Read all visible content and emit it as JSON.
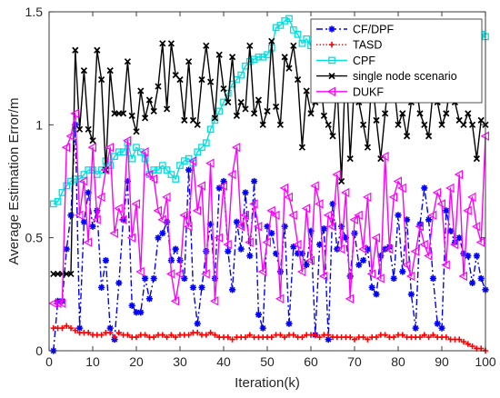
{
  "chart_data": {
    "type": "line",
    "title": "",
    "xlabel": "Iteration(k)",
    "ylabel": "Average Estimation Error/m",
    "xlim": [
      0,
      100
    ],
    "ylim": [
      0,
      1.5
    ],
    "xticks": [
      0,
      10,
      20,
      30,
      40,
      50,
      60,
      70,
      80,
      90,
      100
    ],
    "yticks": [
      0,
      0.5,
      1,
      1.5
    ],
    "ytick_labels": [
      "0",
      "0.5",
      "1",
      "1.5"
    ],
    "grid": false,
    "legend_position": "top-right",
    "series": [
      {
        "name": "CF/DPF",
        "color": "#0000FF",
        "line": "dashdot",
        "marker": "asterisk",
        "x": [
          1,
          2,
          3,
          4,
          5,
          6,
          7,
          8,
          9,
          10,
          11,
          12,
          13,
          14,
          15,
          16,
          17,
          18,
          19,
          20,
          21,
          22,
          23,
          24,
          25,
          26,
          27,
          28,
          29,
          30,
          31,
          32,
          33,
          34,
          35,
          36,
          37,
          38,
          39,
          40,
          41,
          42,
          43,
          44,
          45,
          46,
          47,
          48,
          49,
          50,
          51,
          52,
          53,
          54,
          55,
          56,
          57,
          58,
          59,
          60,
          61,
          62,
          63,
          64,
          65,
          66,
          67,
          68,
          69,
          70,
          71,
          72,
          73,
          74,
          75,
          76,
          77,
          78,
          79,
          80,
          81,
          82,
          83,
          84,
          85,
          86,
          87,
          88,
          89,
          90,
          91,
          92,
          93,
          94,
          95,
          96,
          97,
          98,
          99,
          100
        ],
        "y": [
          0.0,
          0.22,
          0.22,
          0.45,
          0.6,
          1.0,
          0.1,
          0.57,
          0.7,
          0.55,
          0.62,
          0.28,
          0.4,
          0.1,
          0.05,
          0.3,
          0.58,
          0.75,
          0.2,
          0.17,
          0.17,
          0.32,
          0.23,
          0.32,
          0.5,
          0.52,
          0.57,
          0.4,
          0.45,
          0.4,
          0.32,
          0.8,
          0.28,
          0.12,
          0.28,
          0.44,
          0.56,
          0.32,
          0.72,
          0.75,
          0.44,
          0.27,
          0.57,
          0.45,
          0.7,
          0.42,
          0.75,
          0.16,
          0.1,
          0.55,
          0.52,
          0.43,
          0.35,
          0.55,
          0.12,
          0.46,
          0.43,
          0.43,
          0.38,
          0.53,
          0.07,
          0.47,
          0.54,
          0.05,
          0.65,
          0.45,
          0.55,
          0.5,
          0.33,
          0.52,
          0.38,
          0.4,
          0.45,
          0.28,
          0.25,
          0.42,
          0.45,
          0.46,
          0.32,
          0.6,
          0.35,
          0.58,
          0.25,
          0.1,
          0.56,
          0.72,
          0.58,
          0.32,
          0.12,
          0.1,
          0.62,
          0.53,
          0.48,
          0.5,
          0.43,
          0.42,
          0.3,
          0.42,
          0.32,
          0.27
        ]
      },
      {
        "name": "TASD",
        "color": "#FF0000",
        "line": "dotted",
        "marker": "plus",
        "x": [
          1,
          2,
          3,
          4,
          5,
          6,
          7,
          8,
          9,
          10,
          11,
          12,
          13,
          14,
          15,
          16,
          17,
          18,
          19,
          20,
          21,
          22,
          23,
          24,
          25,
          26,
          27,
          28,
          29,
          30,
          31,
          32,
          33,
          34,
          35,
          36,
          37,
          38,
          39,
          40,
          41,
          42,
          43,
          44,
          45,
          46,
          47,
          48,
          49,
          50,
          51,
          52,
          53,
          54,
          55,
          56,
          57,
          58,
          59,
          60,
          61,
          62,
          63,
          64,
          65,
          66,
          67,
          68,
          69,
          70,
          71,
          72,
          73,
          74,
          75,
          76,
          77,
          78,
          79,
          80,
          81,
          82,
          83,
          84,
          85,
          86,
          87,
          88,
          89,
          90,
          91,
          92,
          93,
          94,
          95,
          96,
          97,
          98,
          99,
          100
        ],
        "y": [
          0.1,
          0.1,
          0.1,
          0.11,
          0.1,
          0.09,
          0.08,
          0.08,
          0.08,
          0.07,
          0.07,
          0.07,
          0.08,
          0.08,
          0.06,
          0.08,
          0.07,
          0.07,
          0.06,
          0.06,
          0.07,
          0.07,
          0.06,
          0.06,
          0.07,
          0.07,
          0.06,
          0.07,
          0.06,
          0.07,
          0.07,
          0.07,
          0.08,
          0.08,
          0.07,
          0.07,
          0.08,
          0.07,
          0.06,
          0.06,
          0.06,
          0.05,
          0.06,
          0.06,
          0.06,
          0.07,
          0.06,
          0.06,
          0.06,
          0.06,
          0.06,
          0.07,
          0.07,
          0.06,
          0.07,
          0.07,
          0.06,
          0.06,
          0.07,
          0.07,
          0.07,
          0.06,
          0.07,
          0.07,
          0.06,
          0.06,
          0.06,
          0.06,
          0.06,
          0.05,
          0.06,
          0.06,
          0.05,
          0.06,
          0.06,
          0.07,
          0.07,
          0.06,
          0.06,
          0.07,
          0.07,
          0.06,
          0.06,
          0.06,
          0.06,
          0.07,
          0.06,
          0.07,
          0.06,
          0.06,
          0.06,
          0.05,
          0.05,
          0.05,
          0.04,
          0.03,
          0.02,
          0.01,
          0.01,
          0.0
        ]
      },
      {
        "name": "CPF",
        "color": "#00E0E0",
        "line": "solid",
        "marker": "square",
        "x": [
          1,
          2,
          3,
          4,
          5,
          6,
          7,
          8,
          9,
          10,
          11,
          12,
          13,
          14,
          15,
          16,
          17,
          18,
          19,
          20,
          21,
          22,
          23,
          24,
          25,
          26,
          27,
          28,
          29,
          30,
          31,
          32,
          33,
          34,
          35,
          36,
          37,
          38,
          39,
          40,
          41,
          42,
          43,
          44,
          45,
          46,
          47,
          48,
          49,
          50,
          51,
          52,
          53,
          54,
          55,
          56,
          57,
          58,
          59,
          60,
          61,
          62,
          63,
          64,
          65,
          66,
          67,
          68,
          69,
          70,
          71,
          72,
          73,
          74,
          75,
          76,
          77,
          78,
          79,
          80,
          81,
          82,
          83,
          84,
          85,
          86,
          87,
          88,
          89,
          90,
          91,
          92,
          93,
          94,
          95,
          96,
          97,
          98,
          99,
          100
        ],
        "y": [
          0.65,
          0.66,
          0.7,
          0.73,
          0.75,
          0.76,
          0.76,
          0.78,
          0.8,
          0.8,
          0.78,
          0.8,
          0.84,
          0.82,
          0.86,
          0.88,
          0.88,
          0.92,
          0.85,
          0.9,
          0.88,
          0.85,
          0.78,
          0.8,
          0.8,
          0.82,
          0.8,
          0.78,
          0.76,
          0.82,
          0.84,
          0.85,
          0.83,
          0.88,
          0.9,
          0.92,
          0.98,
          1.02,
          1.06,
          1.1,
          1.14,
          1.18,
          1.2,
          1.22,
          1.26,
          1.28,
          1.29,
          1.3,
          1.3,
          1.31,
          1.34,
          1.43,
          1.44,
          1.46,
          1.47,
          1.42,
          1.4,
          1.36,
          1.38,
          1.35,
          1.32,
          1.35,
          1.38,
          1.35,
          1.32,
          1.3,
          1.32,
          1.34,
          1.36,
          1.38,
          1.4,
          1.37,
          1.34,
          1.32,
          1.3,
          1.32,
          1.36,
          1.34,
          1.3,
          1.28,
          1.26,
          1.28,
          1.3,
          1.32,
          1.34,
          1.36,
          1.35,
          1.33,
          1.31,
          1.3,
          1.32,
          1.34,
          1.36,
          1.35,
          1.33,
          1.34,
          1.36,
          1.38,
          1.4,
          1.39
        ]
      },
      {
        "name": "single node scenario",
        "color": "#000000",
        "line": "solid",
        "marker": "x",
        "x": [
          1,
          2,
          3,
          4,
          5,
          6,
          7,
          8,
          9,
          10,
          11,
          12,
          13,
          14,
          15,
          16,
          17,
          18,
          19,
          20,
          21,
          22,
          23,
          24,
          25,
          26,
          27,
          28,
          29,
          30,
          31,
          32,
          33,
          34,
          35,
          36,
          37,
          38,
          39,
          40,
          41,
          42,
          43,
          44,
          45,
          46,
          47,
          48,
          49,
          50,
          51,
          52,
          53,
          54,
          55,
          56,
          57,
          58,
          59,
          60,
          61,
          62,
          63,
          64,
          65,
          66,
          67,
          68,
          69,
          70,
          71,
          72,
          73,
          74,
          75,
          76,
          77,
          78,
          79,
          80,
          81,
          82,
          83,
          84,
          85,
          86,
          87,
          88,
          89,
          90,
          91,
          92,
          93,
          94,
          95,
          96,
          97,
          98,
          99,
          100
        ],
        "y": [
          0.34,
          0.34,
          0.34,
          0.34,
          0.34,
          1.33,
          0.98,
          1.24,
          0.98,
          0.93,
          1.33,
          1.2,
          0.8,
          1.24,
          1.05,
          1.05,
          1.05,
          1.28,
          1.04,
          0.97,
          1.15,
          1.03,
          1.11,
          1.06,
          1.17,
          1.36,
          1.07,
          1.36,
          1.22,
          1.2,
          1.02,
          1.28,
          1.02,
          1.0,
          1.2,
          1.35,
          1.19,
          1.03,
          1.31,
          1.16,
          1.1,
          1.3,
          1.04,
          1.1,
          1.07,
          1.35,
          1.05,
          1.11,
          1.0,
          1.06,
          1.37,
          1.08,
          1.0,
          1.3,
          1.25,
          1.35,
          1.2,
          0.9,
          1.15,
          1.05,
          1.1,
          1.25,
          1.04,
          1.0,
          0.95,
          1.18,
          0.75,
          1.3,
          0.85,
          1.2,
          1.1,
          1.0,
          0.9,
          1.22,
          1.02,
          0.85,
          1.05,
          1.24,
          1.18,
          1.0,
          1.05,
          0.95,
          1.1,
          1.2,
          1.05,
          1.0,
          0.95,
          1.15,
          1.1,
          1.0,
          1.05,
          1.18,
          1.1,
          1.02,
          1.0,
          1.05,
          1.0,
          0.85,
          1.02,
          1.0
        ]
      },
      {
        "name": "DUKF",
        "color": "#FF00FF",
        "line": "solid",
        "marker": "triangle-left",
        "x": [
          1,
          2,
          3,
          4,
          5,
          6,
          7,
          8,
          9,
          10,
          11,
          12,
          13,
          14,
          15,
          16,
          17,
          18,
          19,
          20,
          21,
          22,
          23,
          24,
          25,
          26,
          27,
          28,
          29,
          30,
          31,
          32,
          33,
          34,
          35,
          36,
          37,
          38,
          39,
          40,
          41,
          42,
          43,
          44,
          45,
          46,
          47,
          48,
          49,
          50,
          51,
          52,
          53,
          54,
          55,
          56,
          57,
          58,
          59,
          60,
          61,
          62,
          63,
          64,
          65,
          66,
          67,
          68,
          69,
          70,
          71,
          72,
          73,
          74,
          75,
          76,
          77,
          78,
          79,
          80,
          81,
          82,
          83,
          84,
          85,
          86,
          87,
          88,
          89,
          90,
          91,
          92,
          93,
          94,
          95,
          96,
          97,
          98,
          99,
          100
        ],
        "y": [
          0.21,
          0.21,
          0.21,
          0.9,
          0.95,
          1.05,
          0.6,
          0.75,
          0.48,
          0.9,
          0.58,
          0.68,
          0.8,
          0.9,
          0.52,
          0.63,
          0.58,
          0.93,
          0.5,
          0.65,
          0.35,
          0.88,
          0.78,
          0.76,
          0.62,
          0.58,
          0.68,
          0.34,
          0.22,
          0.34,
          0.6,
          0.55,
          0.84,
          0.62,
          0.73,
          0.34,
          0.83,
          0.22,
          0.5,
          0.73,
          0.47,
          0.78,
          0.9,
          0.55,
          0.6,
          0.48,
          0.65,
          0.55,
          0.35,
          0.48,
          0.62,
          0.6,
          0.23,
          0.72,
          0.68,
          0.6,
          0.47,
          0.35,
          0.63,
          0.4,
          0.73,
          0.65,
          0.33,
          0.6,
          0.55,
          0.78,
          0.45,
          0.7,
          0.23,
          0.58,
          0.6,
          0.45,
          0.68,
          0.34,
          0.5,
          0.32,
          0.86,
          0.45,
          0.68,
          0.75,
          0.72,
          0.38,
          0.33,
          0.44,
          0.55,
          0.47,
          0.42,
          0.6,
          0.7,
          0.65,
          0.38,
          0.72,
          0.47,
          0.78,
          0.33,
          0.62,
          0.68,
          0.55,
          0.48,
          0.95
        ]
      }
    ]
  }
}
